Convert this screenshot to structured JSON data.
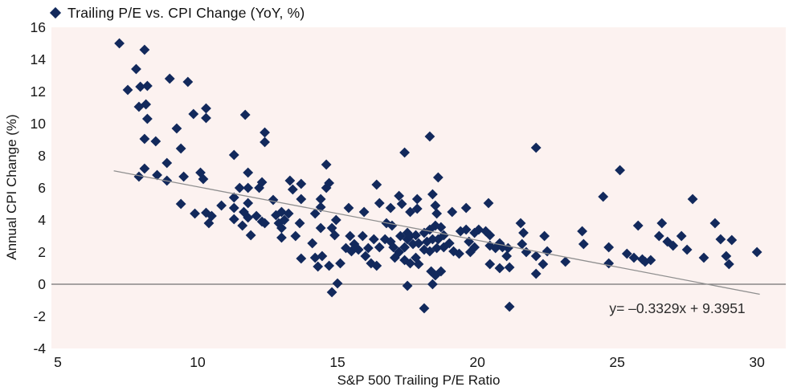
{
  "legend": {
    "label": "Trailing P/E vs. CPI Change (YoY, %)"
  },
  "colors": {
    "marker": "#12295c",
    "plot_background": "#fcf2f0",
    "zero_line": "#737373",
    "trend_line": "#8f8f8f",
    "text": "#161616"
  },
  "chart_data": {
    "type": "scatter",
    "title": "Trailing P/E vs. CPI Change (YoY, %)",
    "xlabel": "S&P 500 Trailing P/E Ratio",
    "ylabel": "Annual CPI Change (%)",
    "xlim": [
      4.77,
      31.03
    ],
    "ylim": [
      -4,
      16
    ],
    "xticks": [
      5,
      10,
      15,
      20,
      25,
      30
    ],
    "yticks": [
      16,
      14,
      12,
      10,
      8,
      6,
      4,
      2,
      0,
      "-2",
      "-4"
    ],
    "grid": "horizontal zero line only",
    "legend_position": "top-left",
    "marker": "diamond",
    "trendline": {
      "equation_label": "y= –0.3329x + 9.3951",
      "slope": -0.3329,
      "intercept": 9.3951,
      "x_start": 7.0,
      "x_end": 30.1
    },
    "points": [
      [
        7.2,
        15.0
      ],
      [
        7.5,
        12.1
      ],
      [
        7.8,
        13.4
      ],
      [
        7.9,
        11.05
      ],
      [
        7.9,
        6.7
      ],
      [
        7.95,
        12.3
      ],
      [
        8.1,
        14.6
      ],
      [
        8.1,
        9.05
      ],
      [
        8.1,
        7.2
      ],
      [
        8.15,
        11.2
      ],
      [
        8.2,
        12.35
      ],
      [
        8.2,
        10.3
      ],
      [
        8.5,
        8.9
      ],
      [
        8.55,
        6.8
      ],
      [
        8.9,
        7.55
      ],
      [
        8.9,
        6.45
      ],
      [
        9.0,
        12.8
      ],
      [
        9.25,
        9.7
      ],
      [
        9.4,
        8.45
      ],
      [
        9.4,
        5.0
      ],
      [
        9.5,
        6.7
      ],
      [
        9.65,
        12.6
      ],
      [
        9.85,
        10.6
      ],
      [
        9.9,
        4.4
      ],
      [
        10.1,
        6.95
      ],
      [
        10.2,
        6.55
      ],
      [
        10.3,
        10.95
      ],
      [
        10.3,
        10.35
      ],
      [
        10.3,
        4.45
      ],
      [
        10.4,
        3.8
      ],
      [
        10.5,
        4.25
      ],
      [
        10.85,
        4.9
      ],
      [
        11.3,
        8.05
      ],
      [
        11.3,
        5.4
      ],
      [
        11.3,
        4.75
      ],
      [
        11.3,
        4.05
      ],
      [
        11.5,
        6.0
      ],
      [
        11.6,
        3.65
      ],
      [
        11.65,
        4.5
      ],
      [
        11.7,
        10.55
      ],
      [
        11.8,
        6.95
      ],
      [
        11.8,
        6.0
      ],
      [
        11.8,
        5.05
      ],
      [
        11.8,
        4.15
      ],
      [
        11.9,
        3.05
      ],
      [
        12.1,
        4.25
      ],
      [
        12.2,
        6.0
      ],
      [
        12.3,
        6.35
      ],
      [
        12.3,
        3.9
      ],
      [
        12.4,
        9.45
      ],
      [
        12.4,
        8.85
      ],
      [
        12.4,
        3.8
      ],
      [
        12.7,
        5.25
      ],
      [
        12.8,
        4.3
      ],
      [
        12.9,
        3.8
      ],
      [
        13.0,
        4.5
      ],
      [
        13.0,
        3.5
      ],
      [
        13.0,
        2.9
      ],
      [
        13.1,
        4.0
      ],
      [
        13.25,
        4.4
      ],
      [
        13.3,
        6.45
      ],
      [
        13.4,
        5.9
      ],
      [
        13.5,
        3.0
      ],
      [
        13.65,
        3.8
      ],
      [
        13.7,
        6.25
      ],
      [
        13.7,
        5.3
      ],
      [
        13.7,
        1.6
      ],
      [
        14.1,
        2.55
      ],
      [
        14.2,
        4.4
      ],
      [
        14.2,
        1.65
      ],
      [
        14.3,
        1.1
      ],
      [
        14.4,
        5.3
      ],
      [
        14.4,
        4.8
      ],
      [
        14.4,
        3.5
      ],
      [
        14.45,
        1.75
      ],
      [
        14.6,
        7.45
      ],
      [
        14.6,
        6.0
      ],
      [
        14.7,
        6.3
      ],
      [
        14.7,
        1.15
      ],
      [
        14.8,
        3.5
      ],
      [
        14.8,
        -0.5
      ],
      [
        14.9,
        3.05
      ],
      [
        14.95,
        4.0
      ],
      [
        15.0,
        0.05
      ],
      [
        15.1,
        1.3
      ],
      [
        15.3,
        2.25
      ],
      [
        15.4,
        4.75
      ],
      [
        15.45,
        3.0
      ],
      [
        15.5,
        2.05
      ],
      [
        15.6,
        2.5
      ],
      [
        15.75,
        2.15
      ],
      [
        15.9,
        3.0
      ],
      [
        15.95,
        4.5
      ],
      [
        16.0,
        1.75
      ],
      [
        16.1,
        2.25
      ],
      [
        16.2,
        1.3
      ],
      [
        16.3,
        2.8
      ],
      [
        16.4,
        6.2
      ],
      [
        16.4,
        1.15
      ],
      [
        16.5,
        5.05
      ],
      [
        16.5,
        2.3
      ],
      [
        16.7,
        2.8
      ],
      [
        16.75,
        3.8
      ],
      [
        16.9,
        4.75
      ],
      [
        16.9,
        2.65
      ],
      [
        16.95,
        3.65
      ],
      [
        17.0,
        2.3
      ],
      [
        17.05,
        1.65
      ],
      [
        17.2,
        5.5
      ],
      [
        17.2,
        2.0
      ],
      [
        17.25,
        3.0
      ],
      [
        17.3,
        5.0
      ],
      [
        17.4,
        8.2
      ],
      [
        17.4,
        2.3
      ],
      [
        17.4,
        1.5
      ],
      [
        17.5,
        3.2
      ],
      [
        17.5,
        2.8
      ],
      [
        17.5,
        -0.1
      ],
      [
        17.6,
        4.5
      ],
      [
        17.6,
        3.0
      ],
      [
        17.6,
        1.3
      ],
      [
        17.7,
        2.5
      ],
      [
        17.8,
        3.05
      ],
      [
        17.8,
        1.65
      ],
      [
        17.85,
        5.3
      ],
      [
        17.85,
        4.7
      ],
      [
        17.9,
        2.55
      ],
      [
        17.9,
        1.25
      ],
      [
        18.1,
        3.2
      ],
      [
        18.1,
        2.15
      ],
      [
        18.1,
        -1.5
      ],
      [
        18.2,
        2.65
      ],
      [
        18.3,
        9.2
      ],
      [
        18.3,
        3.4
      ],
      [
        18.3,
        2.05
      ],
      [
        18.35,
        0.8
      ],
      [
        18.4,
        5.6
      ],
      [
        18.4,
        2.8
      ],
      [
        18.4,
        0.0
      ],
      [
        18.5,
        4.9
      ],
      [
        18.5,
        3.65
      ],
      [
        18.5,
        0.55
      ],
      [
        18.55,
        4.4
      ],
      [
        18.55,
        2.25
      ],
      [
        18.6,
        6.65
      ],
      [
        18.6,
        2.8
      ],
      [
        18.7,
        3.55
      ],
      [
        18.7,
        0.8
      ],
      [
        18.8,
        3.05
      ],
      [
        18.8,
        2.3
      ],
      [
        19.0,
        2.55
      ],
      [
        19.1,
        4.5
      ],
      [
        19.15,
        2.05
      ],
      [
        19.35,
        1.9
      ],
      [
        19.4,
        3.3
      ],
      [
        19.6,
        4.75
      ],
      [
        19.6,
        3.4
      ],
      [
        19.7,
        2.65
      ],
      [
        19.75,
        2.0
      ],
      [
        19.9,
        3.2
      ],
      [
        19.9,
        2.3
      ],
      [
        20.05,
        3.4
      ],
      [
        20.3,
        3.3
      ],
      [
        20.4,
        5.05
      ],
      [
        20.45,
        3.05
      ],
      [
        20.45,
        2.4
      ],
      [
        20.45,
        1.25
      ],
      [
        20.65,
        2.25
      ],
      [
        20.8,
        2.55
      ],
      [
        20.8,
        1.0
      ],
      [
        20.9,
        2.3
      ],
      [
        21.05,
        1.75
      ],
      [
        21.1,
        2.25
      ],
      [
        21.15,
        1.05
      ],
      [
        21.15,
        -1.4
      ],
      [
        21.55,
        3.8
      ],
      [
        21.6,
        2.5
      ],
      [
        21.65,
        3.2
      ],
      [
        21.75,
        2.0
      ],
      [
        22.1,
        8.5
      ],
      [
        22.1,
        1.75
      ],
      [
        22.1,
        0.65
      ],
      [
        22.35,
        1.25
      ],
      [
        22.4,
        3.0
      ],
      [
        22.5,
        2.05
      ],
      [
        23.15,
        1.4
      ],
      [
        23.75,
        3.3
      ],
      [
        23.8,
        2.5
      ],
      [
        24.5,
        5.45
      ],
      [
        24.7,
        2.3
      ],
      [
        24.7,
        1.3
      ],
      [
        25.1,
        7.1
      ],
      [
        25.35,
        1.9
      ],
      [
        25.6,
        1.65
      ],
      [
        25.75,
        3.65
      ],
      [
        25.9,
        1.55
      ],
      [
        26.0,
        1.4
      ],
      [
        26.2,
        1.5
      ],
      [
        26.5,
        3.0
      ],
      [
        26.6,
        3.8
      ],
      [
        26.8,
        2.65
      ],
      [
        27.0,
        2.4
      ],
      [
        27.3,
        3.0
      ],
      [
        27.5,
        2.15
      ],
      [
        27.7,
        5.3
      ],
      [
        28.1,
        1.65
      ],
      [
        28.5,
        3.8
      ],
      [
        28.7,
        2.8
      ],
      [
        28.9,
        1.75
      ],
      [
        29.0,
        1.25
      ],
      [
        29.1,
        2.75
      ],
      [
        30.0,
        2.0
      ]
    ]
  }
}
